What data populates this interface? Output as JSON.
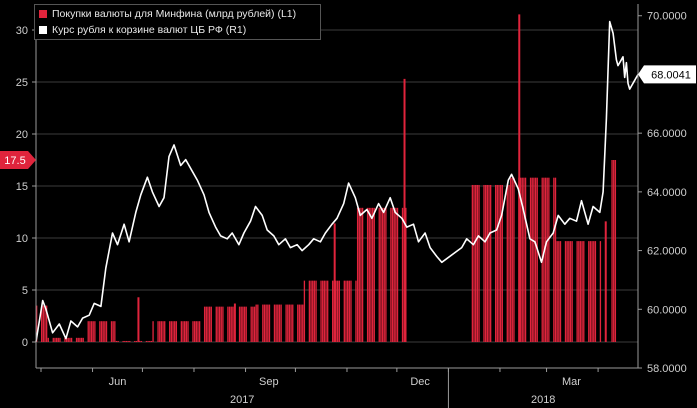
{
  "chart_data": {
    "type": "bar+line",
    "title": "",
    "x_month_labels": [
      "Jun",
      "Sep",
      "Dec",
      "Mar"
    ],
    "x_year_labels": [
      "2017",
      "2018"
    ],
    "series": [
      {
        "name": "Покупки валюты для Минфина (млрд рублей) (L1)",
        "axis": "left",
        "type": "bar",
        "color": "#e0243c",
        "segments": [
          {
            "from": "2017-04-28",
            "to": "2017-05-05",
            "value": 3.5
          },
          {
            "from": "2017-05-05",
            "to": "2017-05-29",
            "value": 0.4
          },
          {
            "from": "2017-05-29",
            "to": "2017-06-15",
            "value": 2.0
          },
          {
            "from": "2017-06-15",
            "to": "2017-07-07",
            "value": 0.1
          },
          {
            "from": "2017-07-07",
            "to": "2017-08-07",
            "value": 2.0
          },
          {
            "from": "2017-08-07",
            "to": "2017-09-07",
            "value": 3.4
          },
          {
            "from": "2017-09-07",
            "to": "2017-10-06",
            "value": 3.6
          },
          {
            "from": "2017-10-06",
            "to": "2017-11-07",
            "value": 5.9
          },
          {
            "from": "2017-11-07",
            "to": "2017-12-07",
            "value": 12.9
          },
          {
            "from": "2018-01-15",
            "to": "2018-02-07",
            "value": 15.1
          },
          {
            "from": "2018-02-07",
            "to": "2018-03-07",
            "value": 15.8
          },
          {
            "from": "2018-03-07",
            "to": "2018-04-03",
            "value": 9.7
          },
          {
            "from": "2018-04-09",
            "to": "2018-04-12",
            "value": 17.5
          }
        ],
        "spikes": [
          {
            "date": "2017-06-28",
            "value": 4.3
          },
          {
            "date": "2017-08-25",
            "value": 3.7
          },
          {
            "date": "2017-10-24",
            "value": 11.4
          },
          {
            "date": "2017-12-05",
            "value": 25.3
          },
          {
            "date": "2018-02-12",
            "value": 31.5
          },
          {
            "date": "2018-04-05",
            "value": 11.6
          }
        ],
        "last_value_label": "17.5"
      },
      {
        "name": "Курс рубля к корзине валют ЦБ РФ (R1)",
        "axis": "right",
        "type": "line",
        "color": "#ffffff",
        "points": [
          [
            "2017-04-28",
            58.9
          ],
          [
            "2017-05-02",
            60.3
          ],
          [
            "2017-05-04",
            60.0
          ],
          [
            "2017-05-08",
            59.2
          ],
          [
            "2017-05-12",
            59.5
          ],
          [
            "2017-05-16",
            59.0
          ],
          [
            "2017-05-19",
            59.6
          ],
          [
            "2017-05-23",
            59.4
          ],
          [
            "2017-05-26",
            59.7
          ],
          [
            "2017-05-30",
            59.8
          ],
          [
            "2017-06-02",
            60.2
          ],
          [
            "2017-06-06",
            60.1
          ],
          [
            "2017-06-09",
            61.4
          ],
          [
            "2017-06-13",
            62.6
          ],
          [
            "2017-06-16",
            62.2
          ],
          [
            "2017-06-20",
            62.9
          ],
          [
            "2017-06-23",
            62.3
          ],
          [
            "2017-06-27",
            63.3
          ],
          [
            "2017-06-30",
            63.9
          ],
          [
            "2017-07-04",
            64.5
          ],
          [
            "2017-07-07",
            64.0
          ],
          [
            "2017-07-11",
            63.5
          ],
          [
            "2017-07-14",
            63.8
          ],
          [
            "2017-07-17",
            65.2
          ],
          [
            "2017-07-20",
            65.6
          ],
          [
            "2017-07-24",
            64.9
          ],
          [
            "2017-07-27",
            65.1
          ],
          [
            "2017-07-31",
            64.7
          ],
          [
            "2017-08-03",
            64.4
          ],
          [
            "2017-08-07",
            63.9
          ],
          [
            "2017-08-10",
            63.3
          ],
          [
            "2017-08-14",
            62.8
          ],
          [
            "2017-08-17",
            62.5
          ],
          [
            "2017-08-21",
            62.4
          ],
          [
            "2017-08-24",
            62.6
          ],
          [
            "2017-08-28",
            62.2
          ],
          [
            "2017-08-31",
            62.6
          ],
          [
            "2017-09-04",
            63.0
          ],
          [
            "2017-09-07",
            63.5
          ],
          [
            "2017-09-11",
            63.2
          ],
          [
            "2017-09-14",
            62.7
          ],
          [
            "2017-09-18",
            62.5
          ],
          [
            "2017-09-21",
            62.2
          ],
          [
            "2017-09-25",
            62.4
          ],
          [
            "2017-09-28",
            62.1
          ],
          [
            "2017-10-02",
            62.2
          ],
          [
            "2017-10-05",
            62.0
          ],
          [
            "2017-10-09",
            62.2
          ],
          [
            "2017-10-12",
            62.4
          ],
          [
            "2017-10-16",
            62.3
          ],
          [
            "2017-10-19",
            62.6
          ],
          [
            "2017-10-23",
            62.9
          ],
          [
            "2017-10-26",
            63.1
          ],
          [
            "2017-10-30",
            63.6
          ],
          [
            "2017-11-02",
            64.3
          ],
          [
            "2017-11-06",
            63.8
          ],
          [
            "2017-11-09",
            63.2
          ],
          [
            "2017-11-13",
            63.4
          ],
          [
            "2017-11-16",
            63.1
          ],
          [
            "2017-11-20",
            63.6
          ],
          [
            "2017-11-23",
            63.3
          ],
          [
            "2017-11-27",
            63.8
          ],
          [
            "2017-11-30",
            63.3
          ],
          [
            "2017-12-04",
            63.1
          ],
          [
            "2017-12-07",
            62.8
          ],
          [
            "2017-12-11",
            62.9
          ],
          [
            "2017-12-14",
            62.3
          ],
          [
            "2017-12-18",
            62.6
          ],
          [
            "2017-12-21",
            62.1
          ],
          [
            "2017-12-25",
            61.8
          ],
          [
            "2017-12-28",
            61.6
          ],
          [
            "2018-01-09",
            62.1
          ],
          [
            "2018-01-12",
            62.4
          ],
          [
            "2018-01-16",
            62.2
          ],
          [
            "2018-01-19",
            62.5
          ],
          [
            "2018-01-23",
            62.3
          ],
          [
            "2018-01-26",
            62.6
          ],
          [
            "2018-01-30",
            62.7
          ],
          [
            "2018-02-02",
            63.2
          ],
          [
            "2018-02-06",
            64.4
          ],
          [
            "2018-02-08",
            64.6
          ],
          [
            "2018-02-12",
            64.1
          ],
          [
            "2018-02-15",
            63.4
          ],
          [
            "2018-02-19",
            62.4
          ],
          [
            "2018-02-22",
            62.3
          ],
          [
            "2018-02-26",
            61.6
          ],
          [
            "2018-03-01",
            62.3
          ],
          [
            "2018-03-05",
            62.6
          ],
          [
            "2018-03-08",
            63.2
          ],
          [
            "2018-03-12",
            62.9
          ],
          [
            "2018-03-15",
            63.1
          ],
          [
            "2018-03-19",
            63.0
          ],
          [
            "2018-03-22",
            63.7
          ],
          [
            "2018-03-26",
            62.9
          ],
          [
            "2018-03-29",
            63.5
          ],
          [
            "2018-04-02",
            63.3
          ],
          [
            "2018-04-04",
            64.0
          ],
          [
            "2018-04-06",
            66.5
          ],
          [
            "2018-04-08",
            69.8
          ],
          [
            "2018-04-10",
            69.4
          ],
          [
            "2018-04-12",
            68.5
          ],
          [
            "2018-04-13",
            68.3
          ],
          [
            "2018-04-16",
            68.6
          ],
          [
            "2018-04-17",
            67.9
          ],
          [
            "2018-04-18",
            68.4
          ],
          [
            "2018-04-19",
            67.7
          ],
          [
            "2018-04-20",
            67.5
          ],
          [
            "2018-04-23",
            67.8
          ],
          [
            "2018-04-25",
            68.0
          ]
        ],
        "last_value_label": "68.0041"
      }
    ],
    "left_axis": {
      "min": -2.5,
      "max": 32.5,
      "ticks": [
        0,
        5,
        10,
        15,
        20,
        25,
        30
      ]
    },
    "right_axis": {
      "min": 58.0,
      "max": 70.4,
      "ticks": [
        "58.0000",
        "60.0000",
        "62.0000",
        "64.0000",
        "66.0000",
        "68.0000",
        "70.0000"
      ]
    },
    "x_range": [
      "2017-04-28",
      "2018-04-25"
    ],
    "legend_position": "top-left",
    "grid": true,
    "colors": {
      "background": "#000000",
      "bars": "#e0243c",
      "line": "#ffffff",
      "grid": "#3c3c3c"
    }
  }
}
